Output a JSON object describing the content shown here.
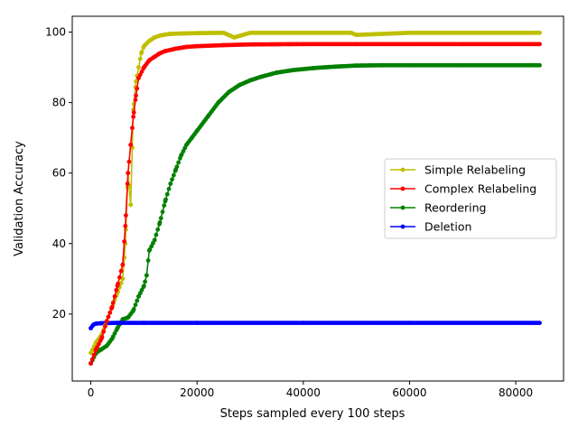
{
  "chart_data": {
    "type": "line",
    "title": "",
    "xlabel": "Steps sampled every 100 steps",
    "ylabel": "Validation Accuracy",
    "xlim": [
      -3500,
      89000
    ],
    "ylim": [
      1,
      104.5
    ],
    "x_ticks": [
      0,
      20000,
      40000,
      60000,
      80000
    ],
    "x_tick_labels": [
      "0",
      "20000",
      "40000",
      "60000",
      "80000"
    ],
    "y_ticks": [
      20,
      40,
      60,
      80,
      100
    ],
    "y_tick_labels": [
      "20",
      "40",
      "60",
      "80",
      "100"
    ],
    "grid": false,
    "legend_position": "center-right",
    "series": [
      {
        "name": "Simple Relabeling",
        "color": "#bfbf00",
        "x": [
          0,
          1000,
          2000,
          3000,
          4000,
          5000,
          6000,
          6500,
          7000,
          7500,
          8000,
          8500,
          9000,
          9500,
          10000,
          11000,
          12000,
          13000,
          14000,
          15000,
          17000,
          20000,
          25000,
          27000,
          30000,
          40000,
          49000,
          50000,
          60000,
          70000,
          84500
        ],
        "y": [
          9,
          12,
          14,
          18,
          22,
          26,
          30,
          40,
          60,
          51,
          78,
          86,
          90,
          94,
          96,
          97.5,
          98.5,
          99,
          99.3,
          99.5,
          99.6,
          99.7,
          99.8,
          98.5,
          99.8,
          99.8,
          99.8,
          99.2,
          99.8,
          99.8,
          99.8
        ]
      },
      {
        "name": "Complex Relabeling",
        "color": "#ff0000",
        "x": [
          0,
          1000,
          2000,
          3000,
          4000,
          5000,
          6000,
          6500,
          7000,
          7500,
          8000,
          8500,
          9000,
          10000,
          11000,
          12000,
          13000,
          14000,
          16000,
          18000,
          20000,
          25000,
          30000,
          40000,
          50000,
          60000,
          70000,
          84500
        ],
        "y": [
          6,
          10,
          13,
          18,
          22,
          28,
          34,
          45,
          60,
          68,
          76,
          82,
          87,
          90,
          92,
          93,
          94,
          94.6,
          95.3,
          95.8,
          96,
          96.3,
          96.5,
          96.6,
          96.6,
          96.6,
          96.6,
          96.6
        ]
      },
      {
        "name": "Reordering",
        "color": "#008000",
        "x": [
          0,
          1000,
          2000,
          3000,
          4000,
          5000,
          6000,
          7000,
          8000,
          9000,
          10000,
          10500,
          11000,
          12000,
          13000,
          14000,
          15000,
          16000,
          17000,
          18000,
          19000,
          20000,
          22000,
          24000,
          26000,
          28000,
          30000,
          32000,
          35000,
          38000,
          42000,
          46000,
          50000,
          55000,
          60000,
          70000,
          84500
        ],
        "y": [
          6,
          9,
          10,
          11,
          13,
          16,
          18.5,
          19,
          21,
          25,
          28,
          31,
          38,
          41,
          46,
          52,
          57,
          61,
          65,
          68,
          70,
          72,
          76,
          80,
          83,
          85,
          86.3,
          87.3,
          88.5,
          89.2,
          89.8,
          90.2,
          90.5,
          90.6,
          90.6,
          90.6,
          90.6
        ]
      },
      {
        "name": "Deletion",
        "color": "#0000ff",
        "x": [
          0,
          500,
          1000,
          2000,
          5000,
          10000,
          20000,
          40000,
          60000,
          84500
        ],
        "y": [
          16,
          17,
          17.3,
          17.4,
          17.5,
          17.5,
          17.5,
          17.5,
          17.5,
          17.5
        ]
      }
    ]
  }
}
